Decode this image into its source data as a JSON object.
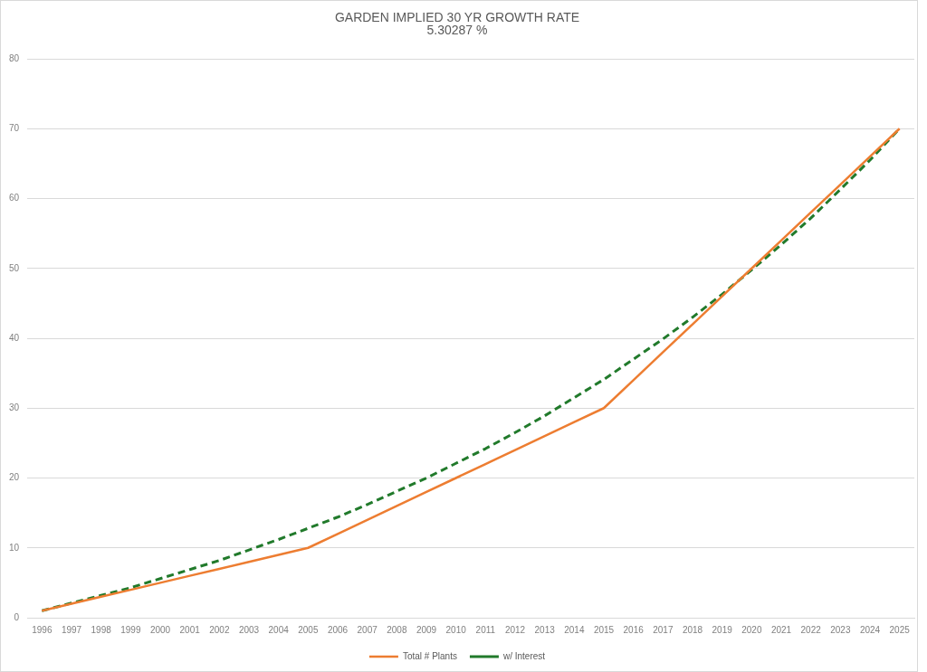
{
  "chart_data": {
    "type": "line",
    "title": "GARDEN IMPLIED 30 YR GROWTH RATE",
    "subtitle": "5.30287 %",
    "categories": [
      "1996",
      "1997",
      "1998",
      "1999",
      "2000",
      "2001",
      "2002",
      "2003",
      "2004",
      "2005",
      "2006",
      "2007",
      "2008",
      "2009",
      "2010",
      "2011",
      "2012",
      "2013",
      "2014",
      "2015",
      "2016",
      "2017",
      "2018",
      "2019",
      "2020",
      "2021",
      "2022",
      "2023",
      "2024",
      "2025"
    ],
    "series": [
      {
        "name": "Total # Plants",
        "color": "#ed7d31",
        "line_style": "solid",
        "values": [
          1,
          2,
          3,
          4,
          5,
          6,
          7,
          8,
          9,
          10,
          12,
          14,
          16,
          18,
          20,
          22,
          24,
          26,
          28,
          30,
          34,
          38,
          42,
          46,
          50,
          54,
          58,
          62,
          66,
          70
        ]
      },
      {
        "name": "w/ Interest",
        "color": "#217a2b",
        "line_style": "dashed",
        "values": [
          1,
          2.1,
          3.2,
          4.3,
          5.6,
          6.9,
          8.2,
          9.7,
          11.2,
          12.8,
          14.4,
          16.2,
          18.1,
          20.0,
          22.1,
          24.2,
          26.5,
          28.9,
          31.5,
          34.1,
          37.0,
          39.9,
          43.0,
          46.3,
          49.8,
          53.4,
          57.2,
          61.3,
          65.5,
          70
        ]
      }
    ],
    "ylim": [
      0,
      80
    ],
    "yticks": [
      0,
      10,
      20,
      30,
      40,
      50,
      60,
      70,
      80
    ],
    "grid": "y",
    "legend": "bottom",
    "marker": "none"
  }
}
